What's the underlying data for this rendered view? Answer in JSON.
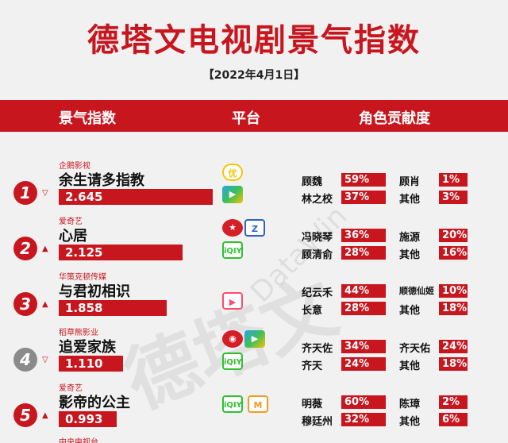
{
  "title": "德塔文电视剧景气指数",
  "date": "【2022年4月1日】",
  "header": {
    "index": "景气指数",
    "platform": "平台",
    "share": "角色贡献度"
  },
  "watermark": "德塔文",
  "watermark_small": "DataWin",
  "colors": {
    "brand_red": "#c8161e"
  },
  "rows": [
    {
      "rank": "1",
      "producer": "企鹅影视",
      "show": "余生请多指教",
      "index": "2.645",
      "index_value": 2.645,
      "trend": "▽",
      "platforms": [
        "youku-icon",
        "tencent-video-icon"
      ],
      "roles": [
        {
          "name": "顾魏",
          "pct": "59%"
        },
        {
          "name": "顾肖",
          "pct": "1%"
        },
        {
          "name": "林之校",
          "pct": "37%"
        },
        {
          "name": "其他",
          "pct": "3%"
        }
      ]
    },
    {
      "rank": "2",
      "producer": "爱奇艺",
      "show": "心居",
      "index": "2.125",
      "index_value": 2.125,
      "trend": "▲",
      "platforms": [
        "dragon-tv-icon",
        "zhejiang-tv-icon",
        "iqiyi-icon"
      ],
      "roles": [
        {
          "name": "冯晓琴",
          "pct": "36%"
        },
        {
          "name": "施源",
          "pct": "20%"
        },
        {
          "name": "顾清俞",
          "pct": "28%"
        },
        {
          "name": "其他",
          "pct": "16%"
        }
      ]
    },
    {
      "rank": "3",
      "producer": "华策克顿传媒",
      "show": "与君初相识",
      "index": "1.858",
      "index_value": 1.858,
      "trend": "▲",
      "platforms": [
        "youku-play-icon"
      ],
      "roles": [
        {
          "name": "纪云禾",
          "pct": "44%"
        },
        {
          "name": "顺德仙姬",
          "pct": "10%"
        },
        {
          "name": "长意",
          "pct": "28%"
        },
        {
          "name": "其他",
          "pct": "18%"
        }
      ]
    },
    {
      "rank": "4",
      "producer": "稻草熊影业",
      "show": "追爱家族",
      "index": "1.110",
      "index_value": 1.11,
      "trend": "▽",
      "platforms": [
        "cctv-icon",
        "tencent-video-icon",
        "iqiyi-icon"
      ],
      "roles": [
        {
          "name": "齐天佐",
          "pct": "34%"
        },
        {
          "name": "齐天佑",
          "pct": "24%"
        },
        {
          "name": "齐天",
          "pct": "24%"
        },
        {
          "name": "其他",
          "pct": "18%"
        }
      ]
    },
    {
      "rank": "5",
      "producer": "爱奇艺",
      "show": "影帝的公主",
      "index": "0.993",
      "index_value": 0.993,
      "trend": "▲",
      "platforms": [
        "iqiyi-icon",
        "mango-tv-icon"
      ],
      "roles": [
        {
          "name": "明薇",
          "pct": "60%"
        },
        {
          "name": "陈璋",
          "pct": "2%"
        },
        {
          "name": "穆廷州",
          "pct": "32%"
        },
        {
          "name": "其他",
          "pct": "6%"
        }
      ]
    }
  ],
  "partial_next_producer": "中央电视台"
}
